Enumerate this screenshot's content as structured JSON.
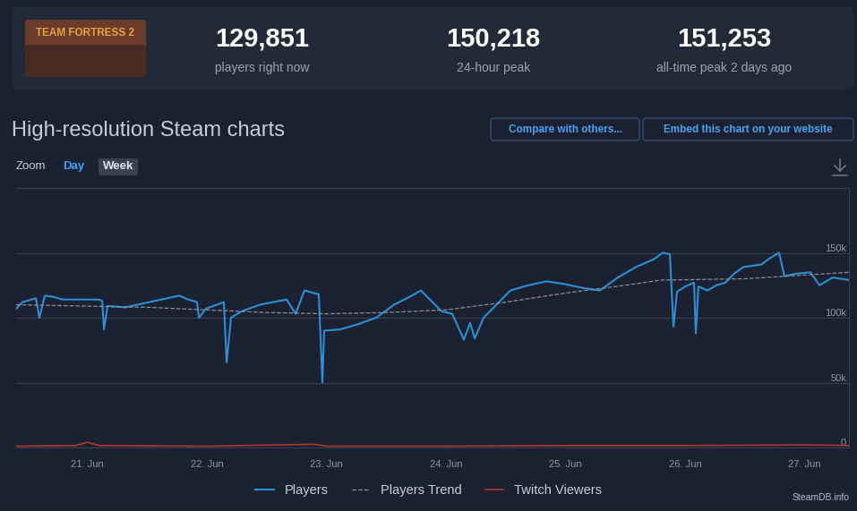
{
  "header": {
    "logo_text": "TEAM FORTRESS 2",
    "stats": [
      {
        "value": "129,851",
        "label": "players right now"
      },
      {
        "value": "150,218",
        "label": "24-hour peak"
      },
      {
        "value": "151,253",
        "label": "all-time peak 2 days ago"
      }
    ]
  },
  "page_title": "High-resolution Steam charts",
  "buttons": [
    "Compare with others...",
    "Embed this chart on your website"
  ],
  "zoom": {
    "label": "Zoom",
    "options": [
      "Day",
      "Week"
    ],
    "selected": "Week"
  },
  "footer": "SteamDB.info",
  "chart_data": {
    "type": "line",
    "xlim": [
      20.404,
      27.371
    ],
    "xticks": [
      {
        "value": 21,
        "label": "21. Jun"
      },
      {
        "value": 22,
        "label": "22. Jun"
      },
      {
        "value": 23,
        "label": "23. Jun"
      },
      {
        "value": 24,
        "label": "24. Jun"
      },
      {
        "value": 25,
        "label": "25. Jun"
      },
      {
        "value": 26,
        "label": "26. Jun"
      },
      {
        "value": 27,
        "label": "27. Jun"
      }
    ],
    "ylim": [
      0,
      200000
    ],
    "yticks": [
      0,
      {
        "value": 50000,
        "label": "50k"
      },
      {
        "value": 100000,
        "label": "100k"
      },
      {
        "value": 150000,
        "label": "150k"
      }
    ],
    "grid": true,
    "legend": "lower center",
    "series": [
      {
        "name": "Players",
        "color": "#2b8fd6",
        "line_style": "solid",
        "x": [
          20.404,
          20.457,
          20.569,
          20.599,
          20.644,
          20.719,
          20.794,
          21.094,
          21.124,
          21.139,
          21.169,
          21.318,
          21.468,
          21.768,
          21.843,
          21.918,
          21.933,
          21.993,
          22.142,
          22.165,
          22.202,
          22.292,
          22.442,
          22.667,
          22.742,
          22.816,
          22.936,
          22.966,
          22.981,
          23.116,
          23.266,
          23.416,
          23.566,
          23.715,
          23.79,
          23.865,
          23.963,
          24.052,
          24.15,
          24.202,
          24.24,
          24.315,
          24.39,
          24.539,
          24.689,
          24.839,
          24.989,
          25.139,
          25.288,
          25.438,
          25.588,
          25.738,
          25.813,
          25.873,
          25.903,
          25.933,
          26.0,
          26.075,
          26.09,
          26.112,
          26.187,
          26.262,
          26.337,
          26.412,
          26.487,
          26.637,
          26.712,
          26.787,
          26.831,
          26.936,
          27.049,
          27.124,
          27.236,
          27.371
        ],
        "values": [
          107000,
          112000,
          115000,
          100000,
          117000,
          116000,
          114000,
          114000,
          113000,
          91000,
          109000,
          108000,
          111000,
          117000,
          114000,
          112000,
          100000,
          107000,
          112000,
          65500,
          100000,
          105000,
          110000,
          114000,
          103000,
          121000,
          118000,
          50000,
          90000,
          91000,
          95000,
          100000,
          110000,
          117000,
          121000,
          114000,
          105000,
          103000,
          83000,
          96000,
          84000,
          100000,
          107000,
          121000,
          125000,
          128000,
          126000,
          123000,
          121000,
          131000,
          139000,
          145000,
          150000,
          149000,
          93000,
          120000,
          124000,
          127000,
          88000,
          124000,
          121000,
          125000,
          127000,
          134000,
          139000,
          141000,
          146000,
          150000,
          132000,
          134000,
          135000,
          125000,
          131000,
          129000
        ]
      },
      {
        "name": "Players Trend",
        "color": "#8a8f96",
        "line_style": "dashed",
        "x": [
          20.404,
          21.5,
          22.5,
          23.0,
          23.5,
          24.0,
          24.5,
          25.0,
          25.5,
          25.8,
          26.5,
          27.371
        ],
        "values": [
          110000,
          108000,
          104000,
          103000,
          104000,
          106000,
          112000,
          119000,
          125000,
          129000,
          130000,
          135000
        ]
      },
      {
        "name": "Twitch Viewers",
        "color": "#b0392e",
        "line_style": "solid",
        "x": [
          20.404,
          20.9,
          21.0,
          21.1,
          22.0,
          22.9,
          23.0,
          24.0,
          25.0,
          26.0,
          27.0,
          27.371
        ],
        "values": [
          1000,
          1500,
          4000,
          1500,
          1000,
          2500,
          1000,
          1000,
          1500,
          1500,
          2000,
          1500
        ]
      }
    ]
  }
}
